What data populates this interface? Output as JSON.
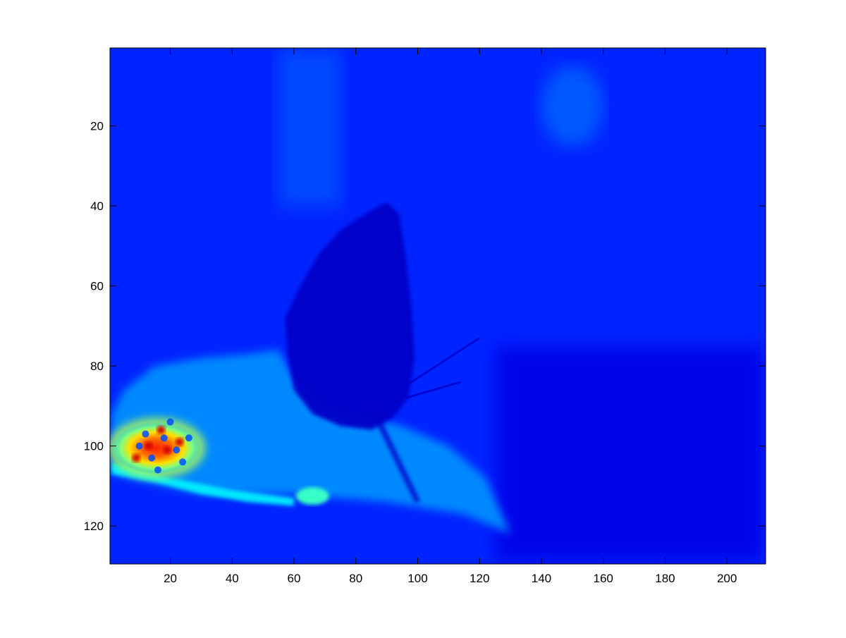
{
  "figure": {
    "background": "#ffffff"
  },
  "chart_data": {
    "type": "heatmap",
    "colormap": "jet",
    "title": "",
    "xlabel": "",
    "ylabel": "",
    "xlim": [
      0.5,
      212.5
    ],
    "ylim": [
      0.5,
      129.5
    ],
    "y_reversed": true,
    "grid": false,
    "legend": "none",
    "colorbar": false,
    "xticks": [
      20,
      40,
      60,
      80,
      100,
      120,
      140,
      160,
      180,
      200
    ],
    "yticks": [
      20,
      40,
      60,
      80,
      100,
      120
    ],
    "background_level": 0.16,
    "regions": [
      {
        "label": "bright-bar-upper",
        "x": [
          55,
          75
        ],
        "y": [
          1,
          40
        ],
        "level": 0.2
      },
      {
        "label": "bright-patch-top-right",
        "x": [
          140,
          160
        ],
        "y": [
          5,
          25
        ],
        "level": 0.22
      },
      {
        "label": "dark-band-lower-right",
        "x": [
          125,
          212
        ],
        "y": [
          75,
          129
        ],
        "level": 0.1
      },
      {
        "label": "butterfly-dark-shape",
        "x": [
          55,
          100
        ],
        "y": [
          38,
          95
        ],
        "level": 0.07
      },
      {
        "label": "flower-stem-region",
        "x": [
          1,
          130
        ],
        "y": [
          75,
          122
        ],
        "level": 0.27
      },
      {
        "label": "stem-bright-streak",
        "x": [
          1,
          60
        ],
        "y": [
          106,
          115
        ],
        "level": 0.36
      },
      {
        "label": "stem-bright-spot",
        "x": [
          62,
          70
        ],
        "y": [
          111,
          114
        ],
        "level": 0.38
      },
      {
        "label": "hot-blob",
        "x": [
          1,
          30
        ],
        "y": [
          94,
          107
        ],
        "peak_level": 0.92
      }
    ]
  }
}
